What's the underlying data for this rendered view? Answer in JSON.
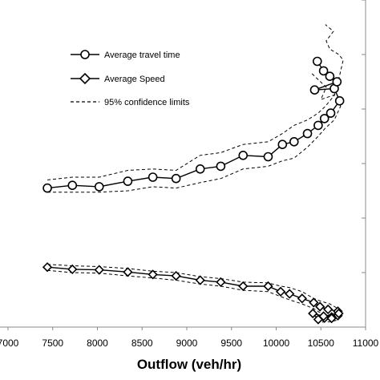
{
  "chart_data": {
    "type": "line",
    "xlabel": "Outflow (veh/hr)",
    "ylabel": "",
    "xlim": [
      7000,
      11000
    ],
    "ylim": [
      0,
      12
    ],
    "xticks": [
      7000,
      7500,
      8000,
      8500,
      9000,
      9500,
      10000,
      10500,
      11000
    ],
    "xtick_labels": [
      "7000",
      "7500",
      "8000",
      "8500",
      "9000",
      "9500",
      "10000",
      "10500",
      "11000"
    ],
    "grid": false,
    "legend_position": "top-left",
    "legend": [
      "Average travel time",
      "Average Speed",
      "95% confidence limits"
    ],
    "series": [
      {
        "name": "Average travel time",
        "marker": "circle",
        "x": [
          7440,
          7720,
          8020,
          8340,
          8620,
          8880,
          9150,
          9380,
          9630,
          9910,
          10070,
          10200,
          10350,
          10470,
          10540,
          10610,
          10710,
          10650,
          10430,
          10680,
          10600,
          10530,
          10460
        ],
        "y": [
          5.1,
          5.2,
          5.15,
          5.35,
          5.5,
          5.45,
          5.8,
          5.9,
          6.3,
          6.25,
          6.7,
          6.8,
          7.1,
          7.4,
          7.65,
          7.85,
          8.3,
          8.75,
          8.7,
          9.0,
          9.2,
          9.4,
          9.75
        ]
      },
      {
        "name": "Average Speed",
        "marker": "diamond",
        "x": [
          7440,
          7720,
          8020,
          8340,
          8620,
          8880,
          9150,
          9380,
          9630,
          9910,
          10050,
          10150,
          10290,
          10420,
          10490,
          10580,
          10690,
          10690,
          10620,
          10540,
          10470,
          10410,
          10530,
          10620,
          10700
        ],
        "y": [
          2.2,
          2.12,
          2.1,
          2.02,
          1.93,
          1.88,
          1.72,
          1.65,
          1.5,
          1.5,
          1.3,
          1.22,
          1.05,
          0.9,
          0.75,
          0.65,
          0.58,
          0.42,
          0.37,
          0.33,
          0.28,
          0.5,
          0.4,
          0.32,
          0.5
        ]
      }
    ],
    "confidence_limits": [
      {
        "x": [
          7440,
          7720,
          8020,
          8340,
          8620,
          8880,
          9150,
          9380,
          9630,
          9910,
          10070,
          10200,
          10350,
          10470,
          10550,
          10650,
          10700,
          10750,
          10700,
          10600,
          10560,
          10640,
          10550
        ],
        "y": [
          5.4,
          5.5,
          5.5,
          5.75,
          5.8,
          5.75,
          6.3,
          6.4,
          6.7,
          6.8,
          7.1,
          7.4,
          7.6,
          7.85,
          8.1,
          8.5,
          9.1,
          9.8,
          10.0,
          10.2,
          10.5,
          10.85,
          11.1
        ]
      },
      {
        "x": [
          7440,
          7720,
          8020,
          8340,
          8620,
          8880,
          9150,
          9380,
          9630,
          9910,
          10070,
          10200,
          10350,
          10470,
          10550,
          10650,
          10720,
          10680,
          10500,
          10560,
          10400
        ],
        "y": [
          4.95,
          4.95,
          4.95,
          5.0,
          5.15,
          5.1,
          5.3,
          5.45,
          5.8,
          5.9,
          6.1,
          6.2,
          6.6,
          7.0,
          7.3,
          7.6,
          8.1,
          8.55,
          8.35,
          8.8,
          9.3
        ]
      },
      {
        "x": [
          7440,
          7720,
          8020,
          8340,
          8620,
          8880,
          9150,
          9380,
          9630,
          9910,
          10050,
          10150,
          10290,
          10420,
          10500,
          10600,
          10690,
          10700,
          10650,
          10560,
          10490
        ],
        "y": [
          2.3,
          2.25,
          2.22,
          2.15,
          2.05,
          2.0,
          1.85,
          1.78,
          1.65,
          1.62,
          1.5,
          1.45,
          1.3,
          1.05,
          0.95,
          0.85,
          0.68,
          0.55,
          0.5,
          0.42,
          0.4
        ]
      },
      {
        "x": [
          7440,
          7720,
          8020,
          8340,
          8620,
          8880,
          9150,
          9380,
          9630,
          9910,
          10050,
          10150,
          10290,
          10420,
          10480,
          10560,
          10640,
          10680,
          10600,
          10500
        ],
        "y": [
          2.08,
          2.0,
          1.98,
          1.88,
          1.8,
          1.72,
          1.58,
          1.5,
          1.35,
          1.3,
          1.12,
          1.0,
          0.85,
          0.68,
          0.55,
          0.45,
          0.35,
          0.25,
          0.2,
          0.18
        ]
      }
    ]
  }
}
